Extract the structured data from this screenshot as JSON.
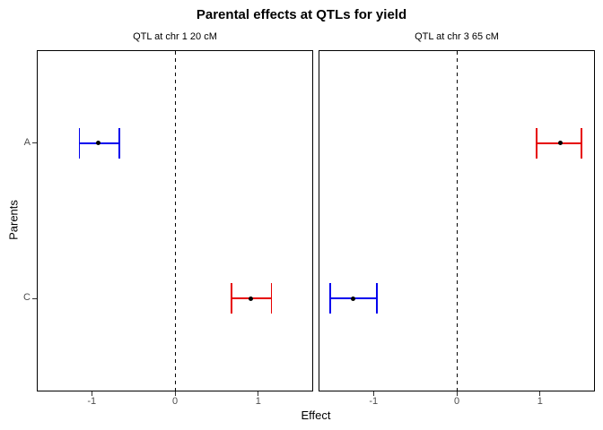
{
  "chart_data": {
    "type": "scatter",
    "title": "Parental effects at QTLs for yield",
    "xlabel": "Effect",
    "ylabel": "Parents",
    "categories": [
      "A",
      "C"
    ],
    "x_ticks": [
      -1,
      0,
      1
    ],
    "x_ticklabels": [
      "-1",
      "0",
      "1"
    ],
    "xlim": [
      -1.66,
      1.66
    ],
    "grid": "off",
    "legend": "none",
    "zero_line": {
      "x": 0,
      "style": "dashed",
      "color": "#000000"
    },
    "colors": {
      "blue": "#0000EE",
      "red": "#E60000",
      "point": "#000000",
      "tick_text": "#4d4d4d"
    },
    "panels": [
      {
        "label": "QTL at chr 1 20 cM",
        "points": [
          {
            "parent": "A",
            "estimate": -0.92,
            "ci_low": -1.15,
            "ci_high": -0.67,
            "color": "blue"
          },
          {
            "parent": "C",
            "estimate": 0.91,
            "ci_low": 0.68,
            "ci_high": 1.16,
            "color": "red"
          }
        ]
      },
      {
        "label": "QTL at chr 3 65 cM",
        "points": [
          {
            "parent": "A",
            "estimate": 1.24,
            "ci_low": 0.96,
            "ci_high": 1.5,
            "color": "red"
          },
          {
            "parent": "C",
            "estimate": -1.24,
            "ci_low": -1.52,
            "ci_high": -0.96,
            "color": "blue"
          }
        ]
      }
    ]
  }
}
